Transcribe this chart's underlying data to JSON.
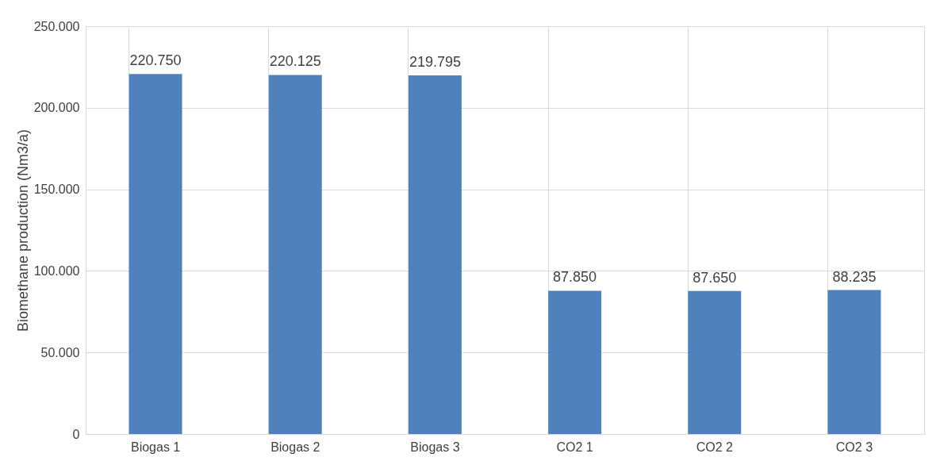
{
  "chart_data": {
    "type": "bar",
    "ylabel": "Biomethane production (Nm3/a)",
    "categories": [
      "Biogas 1",
      "Biogas 2",
      "Biogas 3",
      "CO2 1",
      "CO2 2",
      "CO2 3"
    ],
    "values": [
      220750,
      220125,
      219795,
      87850,
      87650,
      88235
    ],
    "value_labels": [
      "220.750",
      "220.125",
      "219.795",
      "87.850",
      "87.650",
      "88.235"
    ],
    "color": "#4f81bd",
    "ylim": [
      0,
      250000
    ],
    "yticks": [
      {
        "value": 0,
        "label": "0"
      },
      {
        "value": 50000,
        "label": "50.000"
      },
      {
        "value": 100000,
        "label": "100.000"
      },
      {
        "value": 150000,
        "label": "150.000"
      },
      {
        "value": 200000,
        "label": "200.000"
      },
      {
        "value": 250000,
        "label": "250.000"
      }
    ],
    "grid": true
  }
}
